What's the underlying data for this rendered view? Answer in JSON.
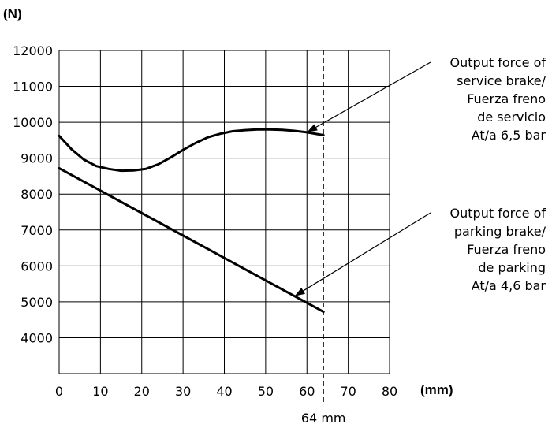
{
  "chart_data": {
    "type": "line",
    "y_unit": "(N)",
    "x_unit": "(mm)",
    "xlim": [
      0,
      80
    ],
    "ylim": [
      3000,
      12000
    ],
    "x_ticks": [
      0,
      10,
      20,
      30,
      40,
      50,
      60,
      70,
      80
    ],
    "y_ticks": [
      4000,
      5000,
      6000,
      7000,
      8000,
      9000,
      10000,
      11000,
      12000
    ],
    "grid": true,
    "marker": {
      "x": 64,
      "label": "64 mm"
    },
    "series": [
      {
        "id": "service",
        "x": [
          0,
          3,
          6,
          9,
          12,
          15,
          18,
          21,
          24,
          27,
          30,
          33,
          36,
          39,
          42,
          45,
          48,
          51,
          54,
          57,
          60,
          64
        ],
        "y": [
          9620,
          9250,
          8960,
          8780,
          8700,
          8650,
          8660,
          8700,
          8830,
          9020,
          9230,
          9420,
          9580,
          9680,
          9750,
          9780,
          9800,
          9800,
          9790,
          9760,
          9720,
          9640
        ],
        "annotation_lines": [
          "Output force of",
          "service brake/",
          "Fuerza freno",
          "de servicio",
          "At/a 6,5 bar"
        ],
        "pointer_x": 60
      },
      {
        "id": "parking",
        "x": [
          0,
          64
        ],
        "y": [
          8720,
          4720
        ],
        "annotation_lines": [
          "Output force of",
          "parking brake/",
          "Fuerza freno",
          "de parking",
          "At/a 4,6 bar"
        ],
        "pointer_x": 57
      }
    ]
  }
}
